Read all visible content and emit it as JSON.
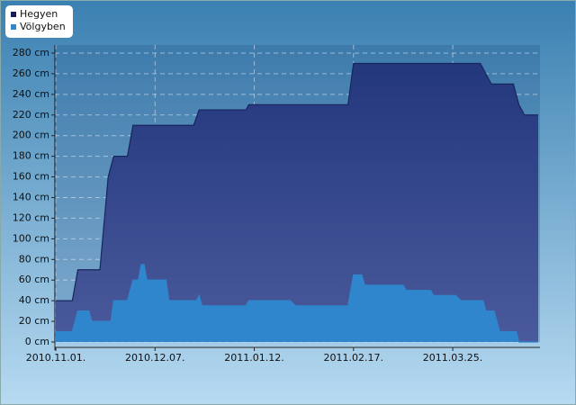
{
  "chart_data": {
    "type": "area",
    "xlim": [
      "2010.11.01.",
      "2011.04.25."
    ],
    "xticks": [
      "2010.11.01.",
      "2010.12.07.",
      "2011.01.12.",
      "2011.02.17.",
      "2011.03.25."
    ],
    "ylim": [
      -8,
      288
    ],
    "yticks": [
      {
        "value": 0,
        "label": "0 cm"
      },
      {
        "value": 20,
        "label": "20 cm"
      },
      {
        "value": 40,
        "label": "40 cm"
      },
      {
        "value": 60,
        "label": "60 cm"
      },
      {
        "value": 80,
        "label": "80 cm"
      },
      {
        "value": 100,
        "label": "100 cm"
      },
      {
        "value": 120,
        "label": "120 cm"
      },
      {
        "value": 140,
        "label": "140 cm"
      },
      {
        "value": 160,
        "label": "160 cm"
      },
      {
        "value": 180,
        "label": "180 cm"
      },
      {
        "value": 200,
        "label": "200 cm"
      },
      {
        "value": 220,
        "label": "220 cm"
      },
      {
        "value": 240,
        "label": "240 cm"
      },
      {
        "value": 260,
        "label": "260 cm"
      },
      {
        "value": 280,
        "label": "280 cm"
      }
    ],
    "grid": true,
    "legend": "top-left",
    "series": [
      {
        "name": "Hegyen",
        "color": "#2b3d84",
        "x": [
          "2010.11.01.",
          "2010.11.07.",
          "2010.11.09.",
          "2010.11.17.",
          "2010.11.20.",
          "2010.11.22.",
          "2010.11.27.",
          "2010.11.29.",
          "2010.12.21.",
          "2010.12.23.",
          "2011.01.09.",
          "2011.01.10.",
          "2011.02.15.",
          "2011.02.17.",
          "2011.04.04.",
          "2011.04.06.",
          "2011.04.08.",
          "2011.04.16.",
          "2011.04.18.",
          "2011.04.20.",
          "2011.04.25."
        ],
        "values": [
          40,
          40,
          70,
          70,
          160,
          180,
          180,
          210,
          210,
          225,
          225,
          230,
          230,
          270,
          270,
          260,
          250,
          250,
          230,
          220,
          220
        ]
      },
      {
        "name": "Völgyben",
        "color": "#2f86cc",
        "x": [
          "2010.11.01.",
          "2010.11.07.",
          "2010.11.09.",
          "2010.11.13.",
          "2010.11.14.",
          "2010.11.21.",
          "2010.11.22.",
          "2010.11.27.",
          "2010.11.29.",
          "2010.12.01.",
          "2010.12.02.",
          "2010.12.03.",
          "2010.12.04.",
          "2010.12.11.",
          "2010.12.12.",
          "2010.12.22.",
          "2010.12.23.",
          "2010.12.24.",
          "2011.01.09.",
          "2011.01.10.",
          "2011.01.25.",
          "2011.01.27.",
          "2011.02.15.",
          "2011.02.17.",
          "2011.02.20.",
          "2011.02.21.",
          "2011.03.07.",
          "2011.03.08.",
          "2011.03.17.",
          "2011.03.18.",
          "2011.03.26.",
          "2011.03.28.",
          "2011.04.05.",
          "2011.04.06.",
          "2011.04.09.",
          "2011.04.11.",
          "2011.04.17.",
          "2011.04.18.",
          "2011.04.25."
        ],
        "values": [
          10,
          10,
          30,
          30,
          20,
          20,
          40,
          40,
          60,
          60,
          75,
          75,
          60,
          60,
          40,
          40,
          45,
          35,
          35,
          40,
          40,
          35,
          35,
          65,
          65,
          55,
          55,
          50,
          50,
          45,
          45,
          40,
          40,
          30,
          30,
          10,
          10,
          0,
          0
        ]
      }
    ]
  }
}
